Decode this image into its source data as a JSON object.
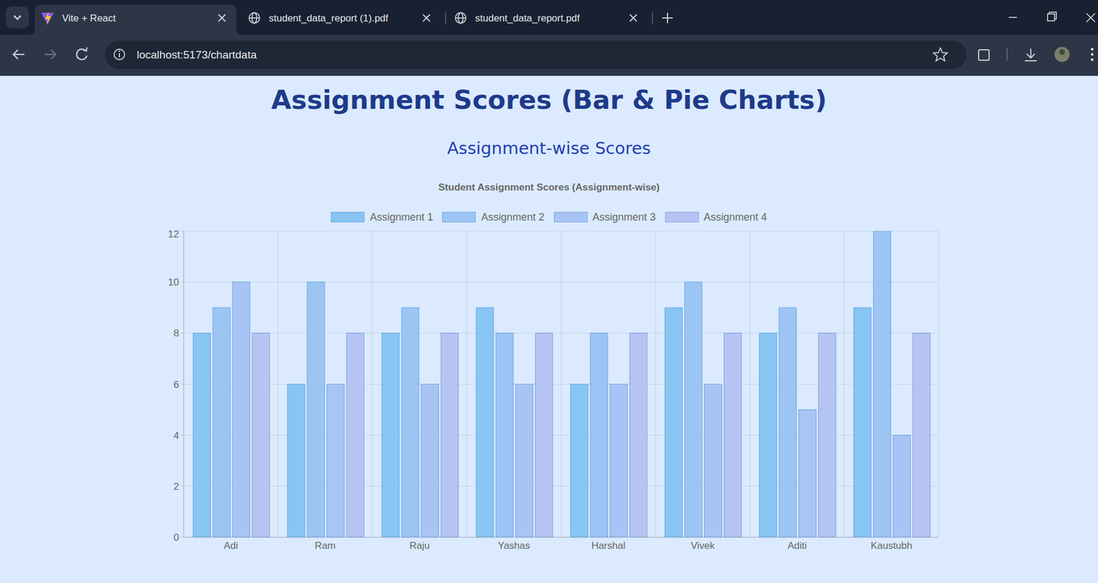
{
  "browser": {
    "tabs": [
      "Vite + React",
      "student_data_report (1).pdf",
      "student_data_report.pdf"
    ],
    "url": "localhost:5173/chartdata"
  },
  "page": {
    "title": "Assignment Scores (Bar & Pie Charts)",
    "subtitle": "Assignment-wise Scores"
  },
  "chart_data": {
    "type": "bar",
    "title": "Student Assignment Scores (Assignment-wise)",
    "categories": [
      "Adi",
      "Ram",
      "Raju",
      "Yashas",
      "Harshal",
      "Vivek",
      "Aditi",
      "Kaustubh"
    ],
    "series": [
      {
        "name": "Assignment 1",
        "color": "#88c5f3",
        "values": [
          8,
          6,
          8,
          9,
          6,
          9,
          8,
          9
        ]
      },
      {
        "name": "Assignment 2",
        "color": "#9cc5f4",
        "values": [
          9,
          10,
          9,
          8,
          8,
          10,
          9,
          12
        ]
      },
      {
        "name": "Assignment 3",
        "color": "#a8c4f4",
        "values": [
          10,
          6,
          6,
          6,
          6,
          6,
          5,
          4
        ]
      },
      {
        "name": "Assignment 4",
        "color": "#b6c4f3",
        "values": [
          8,
          8,
          8,
          8,
          8,
          8,
          8,
          8
        ]
      }
    ],
    "ylim": [
      0,
      12
    ],
    "yticks": [
      0,
      2,
      4,
      6,
      8,
      10,
      12
    ],
    "grid": true,
    "legend": "top"
  }
}
